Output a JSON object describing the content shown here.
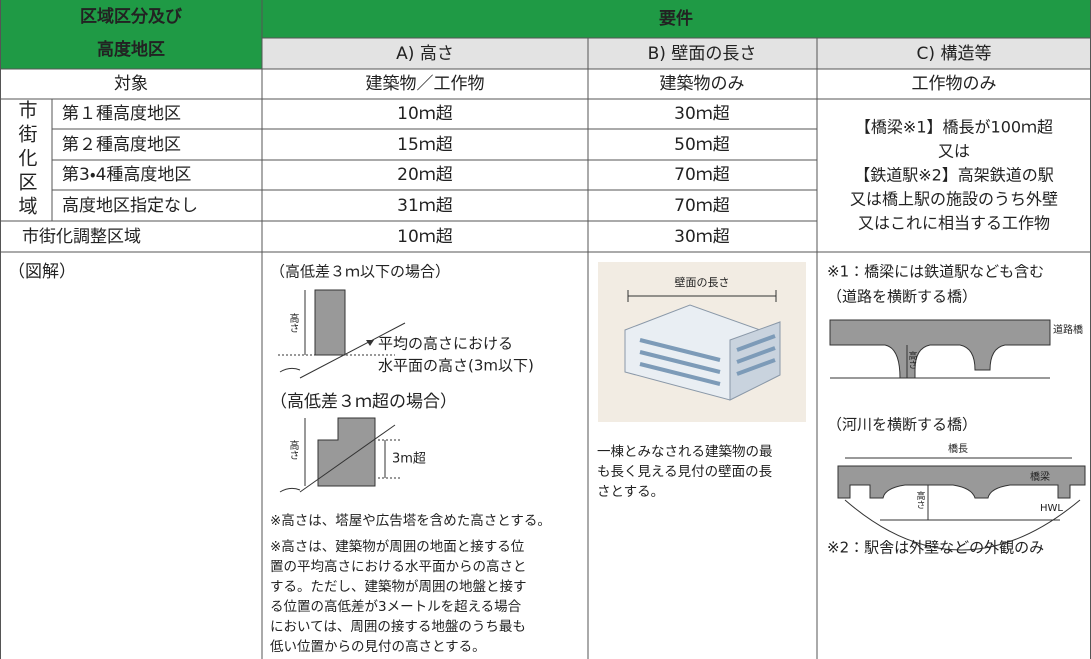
{
  "header": {
    "zone_lines": [
      "区域区分及び",
      "高度地区"
    ],
    "requirements": "要件",
    "columns": [
      "A) 高さ",
      "B) 壁面の長さ",
      "C) 構造等"
    ]
  },
  "table": {
    "target_label": "対象",
    "targets": [
      "建築物／工作物",
      "建築物のみ",
      "工作物のみ"
    ],
    "urban_area": "市街化区域",
    "rows": [
      [
        "第１種高度地区",
        "10ｍ超",
        "30ｍ超"
      ],
      [
        "第２種高度地区",
        "15ｍ超",
        "50ｍ超"
      ],
      [
        "第3・4種高度地区",
        "20ｍ超",
        "70ｍ超"
      ],
      [
        "高度地区指定なし",
        "31ｍ超",
        "70ｍ超"
      ]
    ],
    "adjustment_row": [
      "市街化調整区域",
      "10ｍ超",
      "30ｍ超"
    ],
    "structure_lines": [
      "【橋梁※1】橋長が100ｍ超",
      "又は",
      "【鉄道駅※2】高架鉄道の駅",
      "又は橋上駅の施設のうち外壁",
      "又はこれに相当する工作物"
    ]
  },
  "illustration": {
    "label": "（図解）",
    "height": {
      "case1": "（高低差３ｍ以下の場合）",
      "height_label": "高さ",
      "annotation_lines": [
        "平均の高さにおける",
        "水平面の高さ(3m以下)"
      ],
      "case2": "（高低差３ｍ超の場合）",
      "over3m": "3m超",
      "notes": [
        "※高さは、塔屋や広告塔を含めた高さとする。",
        "※高さは、建築物が周囲の地面と接する位",
        "置の平均高さにおける水平面からの高さと",
        "する。ただし、建築物が周囲の地盤と接す",
        "る位置の高低差が3メートルを超える場合",
        "においては、周囲の接する地盤のうち最も",
        "低い位置からの見付の高さとする。"
      ]
    },
    "wall": {
      "label": "壁面の長さ",
      "text_lines": [
        "一棟とみなされる建築物の最",
        "も長く見える見付の壁面の長",
        "さとする。"
      ]
    },
    "structure": {
      "note1": "※1：橋梁には鉄道駅なども含む",
      "road_caption": "（道路を横断する橋）",
      "road_bridge": "道路橋",
      "height_label": "高さ",
      "river_caption": "（河川を横断する橋）",
      "span": "橋長",
      "girder": "橋梁",
      "hwl": "HWL",
      "note2": "※2：駅舎は外壁などの外観のみ"
    }
  }
}
